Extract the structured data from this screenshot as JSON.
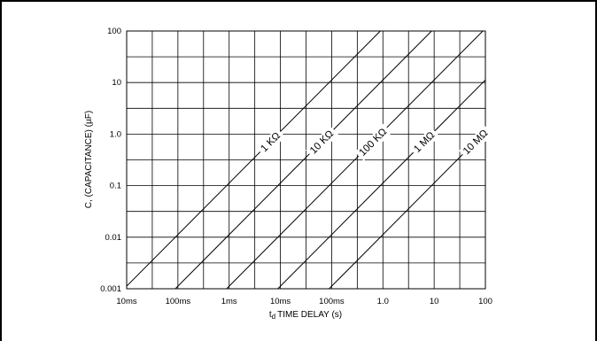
{
  "chart_data": {
    "type": "line",
    "scale": "log-log",
    "xlabel_sub": "d",
    "xlabel_pre": "t",
    "xlabel_rest": "TIME DELAY (s)",
    "ylabel": "C, (CAPACITANCE) (µF)",
    "x_ticks": [
      "10ms",
      "100ms",
      "1ms",
      "10ms",
      "100ms",
      "1.0",
      "10",
      "100"
    ],
    "y_ticks": [
      "100",
      "10",
      "1.0",
      "0.1",
      "0.01",
      "0.001"
    ],
    "grid": true,
    "series": [
      {
        "name": "1 KΩ",
        "decade_offset": 0
      },
      {
        "name": "10 KΩ",
        "decade_offset": 1
      },
      {
        "name": "100 KΩ",
        "decade_offset": 2
      },
      {
        "name": "1 MΩ",
        "decade_offset": 3
      },
      {
        "name": "10 MΩ",
        "decade_offset": 4
      }
    ]
  }
}
